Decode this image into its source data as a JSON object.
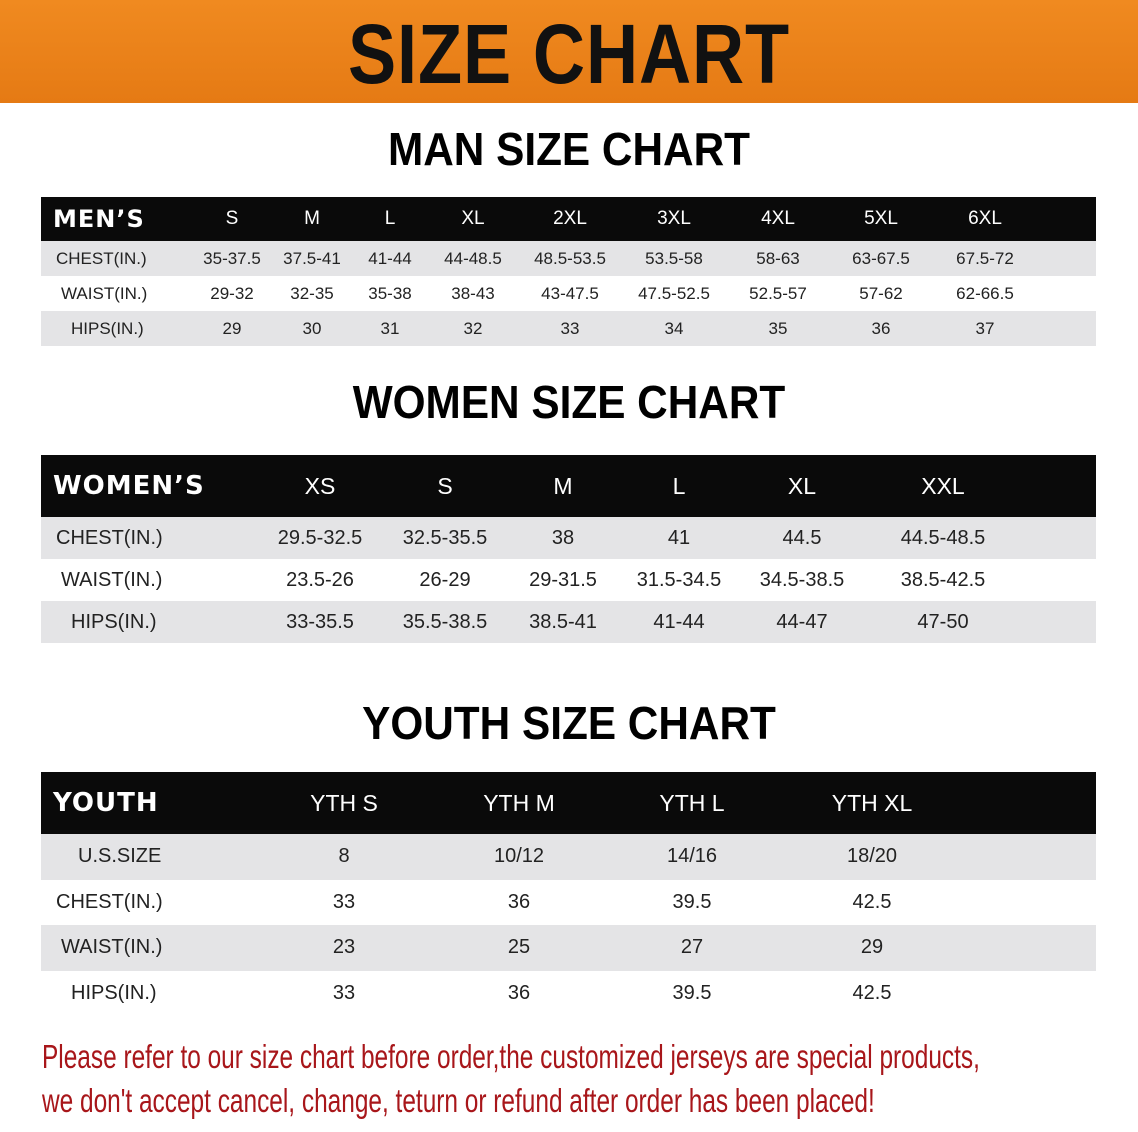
{
  "banner": {
    "title": "SIZE CHART",
    "color": "#ec8219"
  },
  "men": {
    "title": "MAN SIZE CHART",
    "header_label": "MEN’S",
    "sizes": [
      "S",
      "M",
      "L",
      "XL",
      "2XL",
      "3XL",
      "4XL",
      "5XL",
      "6XL"
    ],
    "rows": [
      {
        "label": "CHEST(IN.)",
        "values": [
          "35-37.5",
          "37.5-41",
          "41-44",
          "44-48.5",
          "48.5-53.5",
          "53.5-58",
          "58-63",
          "63-67.5",
          "67.5-72"
        ]
      },
      {
        "label": "WAIST(IN.)",
        "values": [
          "29-32",
          "32-35",
          "35-38",
          "38-43",
          "43-47.5",
          "47.5-52.5",
          "52.5-57",
          "57-62",
          "62-66.5"
        ]
      },
      {
        "label": "HIPS(IN.)",
        "values": [
          "29",
          "30",
          "31",
          "32",
          "33",
          "34",
          "35",
          "36",
          "37"
        ]
      }
    ]
  },
  "women": {
    "title": "WOMEN SIZE CHART",
    "header_label": "WOMEN’S",
    "sizes": [
      "XS",
      "S",
      "M",
      "L",
      "XL",
      "XXL"
    ],
    "rows": [
      {
        "label": "CHEST(IN.)",
        "values": [
          "29.5-32.5",
          "32.5-35.5",
          "38",
          "41",
          "44.5",
          "44.5-48.5"
        ]
      },
      {
        "label": "WAIST(IN.)",
        "values": [
          "23.5-26",
          "26-29",
          "29-31.5",
          "31.5-34.5",
          "34.5-38.5",
          "38.5-42.5"
        ]
      },
      {
        "label": "HIPS(IN.)",
        "values": [
          "33-35.5",
          "35.5-38.5",
          "38.5-41",
          "41-44",
          "44-47",
          "47-50"
        ]
      }
    ]
  },
  "youth": {
    "title": "YOUTH SIZE CHART",
    "header_label": "YOUTH",
    "sizes": [
      "YTH S",
      "YTH M",
      "YTH L",
      "YTH XL"
    ],
    "rows": [
      {
        "label": "U.S.SIZE",
        "values": [
          "8",
          "10/12",
          "14/16",
          "18/20"
        ]
      },
      {
        "label": "CHEST(IN.)",
        "values": [
          "33",
          "36",
          "39.5",
          "42.5"
        ]
      },
      {
        "label": "WAIST(IN.)",
        "values": [
          "23",
          "25",
          "27",
          "29"
        ]
      },
      {
        "label": "HIPS(IN.)",
        "values": [
          "33",
          "36",
          "39.5",
          "42.5"
        ]
      }
    ]
  },
  "notice": {
    "line1": "Please refer to our size chart before order,the customized jerseys are special products,",
    "line2": "we don't accept cancel, change, teturn or refund after order has been placed!",
    "color": "#a8161a"
  }
}
